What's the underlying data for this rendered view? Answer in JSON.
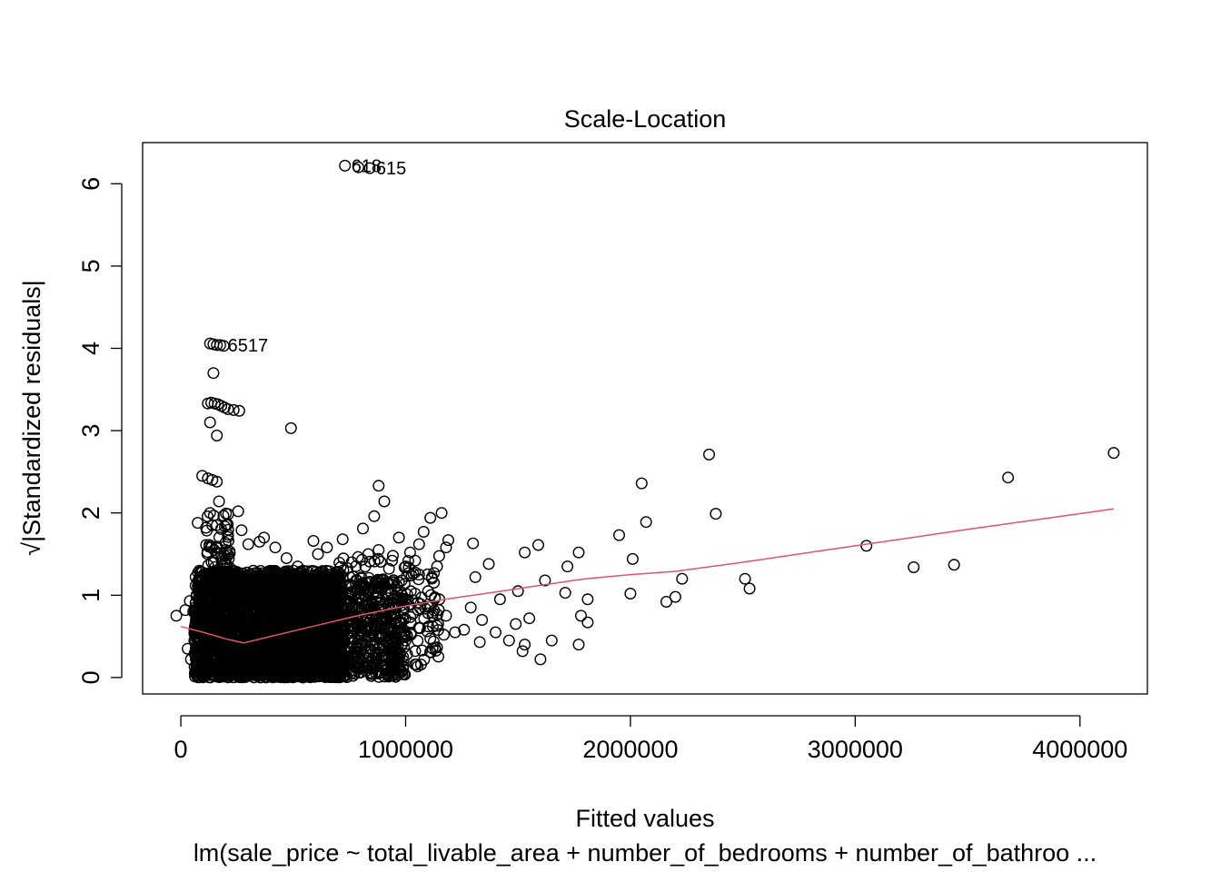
{
  "chart_data": {
    "type": "scatter",
    "title": "Scale-Location",
    "xlabel": "Fitted values",
    "ylabel": "√|Standardized residuals|",
    "subtitle": "lm(sale_price ~ total_livable_area + number_of_bedrooms + number_of_bathroo ...",
    "xlim": [
      -170000,
      4300000
    ],
    "ylim": [
      -0.2,
      6.5
    ],
    "x_ticks": [
      0,
      1000000,
      2000000,
      3000000,
      4000000
    ],
    "x_tick_labels": [
      "0",
      "1000000",
      "2000000",
      "3000000",
      "4000000"
    ],
    "y_ticks": [
      0,
      1,
      2,
      3,
      4,
      5,
      6
    ],
    "y_tick_labels": [
      "0",
      "1",
      "2",
      "3",
      "4",
      "5",
      "6"
    ],
    "grid": false,
    "legend": "none",
    "colors": {
      "points": "#000000",
      "smooth_line": "#DF536B",
      "frame": "#000000"
    },
    "labeled_points": [
      {
        "label": "618",
        "x": 730000,
        "y": 6.22
      },
      {
        "label": "615",
        "x": 840000,
        "y": 6.19
      },
      {
        "label": "6517",
        "x": 180000,
        "y": 4.04
      }
    ],
    "points": [
      [
        730000,
        6.22
      ],
      [
        790000,
        6.2
      ],
      [
        840000,
        6.19
      ],
      [
        130000,
        4.06
      ],
      [
        145000,
        4.05
      ],
      [
        160000,
        4.04
      ],
      [
        175000,
        4.04
      ],
      [
        190000,
        4.03
      ],
      [
        145000,
        3.7
      ],
      [
        120000,
        3.33
      ],
      [
        135000,
        3.34
      ],
      [
        150000,
        3.33
      ],
      [
        165000,
        3.32
      ],
      [
        180000,
        3.3
      ],
      [
        195000,
        3.28
      ],
      [
        210000,
        3.26
      ],
      [
        235000,
        3.25
      ],
      [
        260000,
        3.24
      ],
      [
        130000,
        3.1
      ],
      [
        160000,
        2.94
      ],
      [
        490000,
        3.03
      ],
      [
        95000,
        2.45
      ],
      [
        120000,
        2.42
      ],
      [
        140000,
        2.4
      ],
      [
        160000,
        2.38
      ],
      [
        880000,
        2.33
      ],
      [
        905000,
        2.14
      ],
      [
        1160000,
        2.0
      ],
      [
        1110000,
        1.94
      ],
      [
        860000,
        1.96
      ],
      [
        810000,
        1.81
      ],
      [
        130000,
        2.0
      ],
      [
        170000,
        2.14
      ],
      [
        255000,
        2.02
      ],
      [
        75000,
        1.88
      ],
      [
        140000,
        1.85
      ],
      [
        270000,
        1.79
      ],
      [
        350000,
        1.65
      ],
      [
        370000,
        1.7
      ],
      [
        470000,
        1.45
      ],
      [
        590000,
        1.66
      ],
      [
        650000,
        1.58
      ],
      [
        720000,
        1.68
      ],
      [
        970000,
        1.7
      ],
      [
        1060000,
        1.62
      ],
      [
        1080000,
        1.77
      ],
      [
        1190000,
        1.67
      ],
      [
        1180000,
        1.58
      ],
      [
        1020000,
        1.52
      ],
      [
        1140000,
        1.35
      ],
      [
        1300000,
        1.63
      ],
      [
        1310000,
        1.22
      ],
      [
        1370000,
        1.38
      ],
      [
        1420000,
        0.95
      ],
      [
        1290000,
        0.85
      ],
      [
        1340000,
        0.7
      ],
      [
        1220000,
        0.55
      ],
      [
        1170000,
        0.52
      ],
      [
        1330000,
        0.43
      ],
      [
        1400000,
        0.55
      ],
      [
        1260000,
        0.58
      ],
      [
        1150000,
        0.95
      ],
      [
        1100000,
        0.78
      ],
      [
        1060000,
        0.6
      ],
      [
        1000000,
        0.45
      ],
      [
        970000,
        0.12
      ],
      [
        920000,
        0.1
      ],
      [
        1180000,
        0.75
      ],
      [
        1490000,
        0.65
      ],
      [
        1520000,
        0.32
      ],
      [
        1530000,
        0.4
      ],
      [
        1550000,
        0.72
      ],
      [
        1530000,
        1.52
      ],
      [
        1590000,
        1.61
      ],
      [
        1600000,
        0.22
      ],
      [
        1620000,
        1.18
      ],
      [
        1650000,
        0.45
      ],
      [
        1720000,
        1.35
      ],
      [
        1710000,
        1.03
      ],
      [
        1770000,
        1.52
      ],
      [
        1780000,
        0.75
      ],
      [
        1770000,
        0.4
      ],
      [
        1810000,
        0.95
      ],
      [
        1810000,
        0.67
      ],
      [
        1500000,
        1.05
      ],
      [
        1460000,
        0.45
      ],
      [
        1950000,
        1.73
      ],
      [
        2010000,
        1.44
      ],
      [
        2000000,
        1.02
      ],
      [
        2050000,
        2.36
      ],
      [
        2070000,
        1.89
      ],
      [
        2160000,
        0.92
      ],
      [
        2200000,
        0.98
      ],
      [
        2230000,
        1.2
      ],
      [
        2350000,
        2.71
      ],
      [
        2380000,
        1.99
      ],
      [
        2510000,
        1.2
      ],
      [
        2530000,
        1.08
      ],
      [
        3050000,
        1.6
      ],
      [
        3260000,
        1.34
      ],
      [
        3440000,
        1.37
      ],
      [
        3680000,
        2.43
      ],
      [
        4150000,
        2.73
      ],
      [
        -20000,
        0.75
      ],
      [
        20000,
        0.82
      ],
      [
        40000,
        0.93
      ],
      [
        55000,
        0.8
      ],
      [
        30000,
        0.35
      ],
      [
        60000,
        0.45
      ],
      [
        45000,
        0.22
      ],
      [
        70000,
        0.6
      ],
      [
        85000,
        1.22
      ],
      [
        110000,
        1.2
      ],
      [
        200000,
        1.55
      ],
      [
        300000,
        1.62
      ],
      [
        420000,
        1.58
      ],
      [
        520000,
        1.35
      ],
      [
        610000,
        1.5
      ],
      [
        760000,
        1.4
      ],
      [
        820000,
        1.35
      ],
      [
        880000,
        1.55
      ],
      [
        940000,
        1.42
      ],
      [
        1000000,
        1.35
      ],
      [
        1060000,
        1.25
      ],
      [
        1100000,
        1.05
      ]
    ],
    "dense_regions": [
      {
        "x_range": [
          60000,
          720000
        ],
        "y_range": [
          0.0,
          1.3
        ],
        "count": 2600
      },
      {
        "x_range": [
          300000,
          1000000
        ],
        "y_range": [
          0.0,
          1.2
        ],
        "count": 900
      },
      {
        "x_range": [
          110000,
          220000
        ],
        "y_range": [
          1.2,
          2.0
        ],
        "count": 60
      },
      {
        "x_range": [
          700000,
          1150000
        ],
        "y_range": [
          0.1,
          1.5
        ],
        "count": 220
      }
    ],
    "smooth_line": {
      "x": [
        0,
        100000,
        200000,
        280000,
        400000,
        600000,
        800000,
        1000000,
        1200000,
        1400000,
        1600000,
        1800000,
        2000000,
        2200000,
        2500000,
        3000000,
        3500000,
        4150000
      ],
      "y": [
        0.62,
        0.55,
        0.47,
        0.42,
        0.5,
        0.63,
        0.76,
        0.87,
        0.96,
        1.04,
        1.12,
        1.2,
        1.25,
        1.29,
        1.4,
        1.6,
        1.8,
        2.05
      ]
    }
  }
}
